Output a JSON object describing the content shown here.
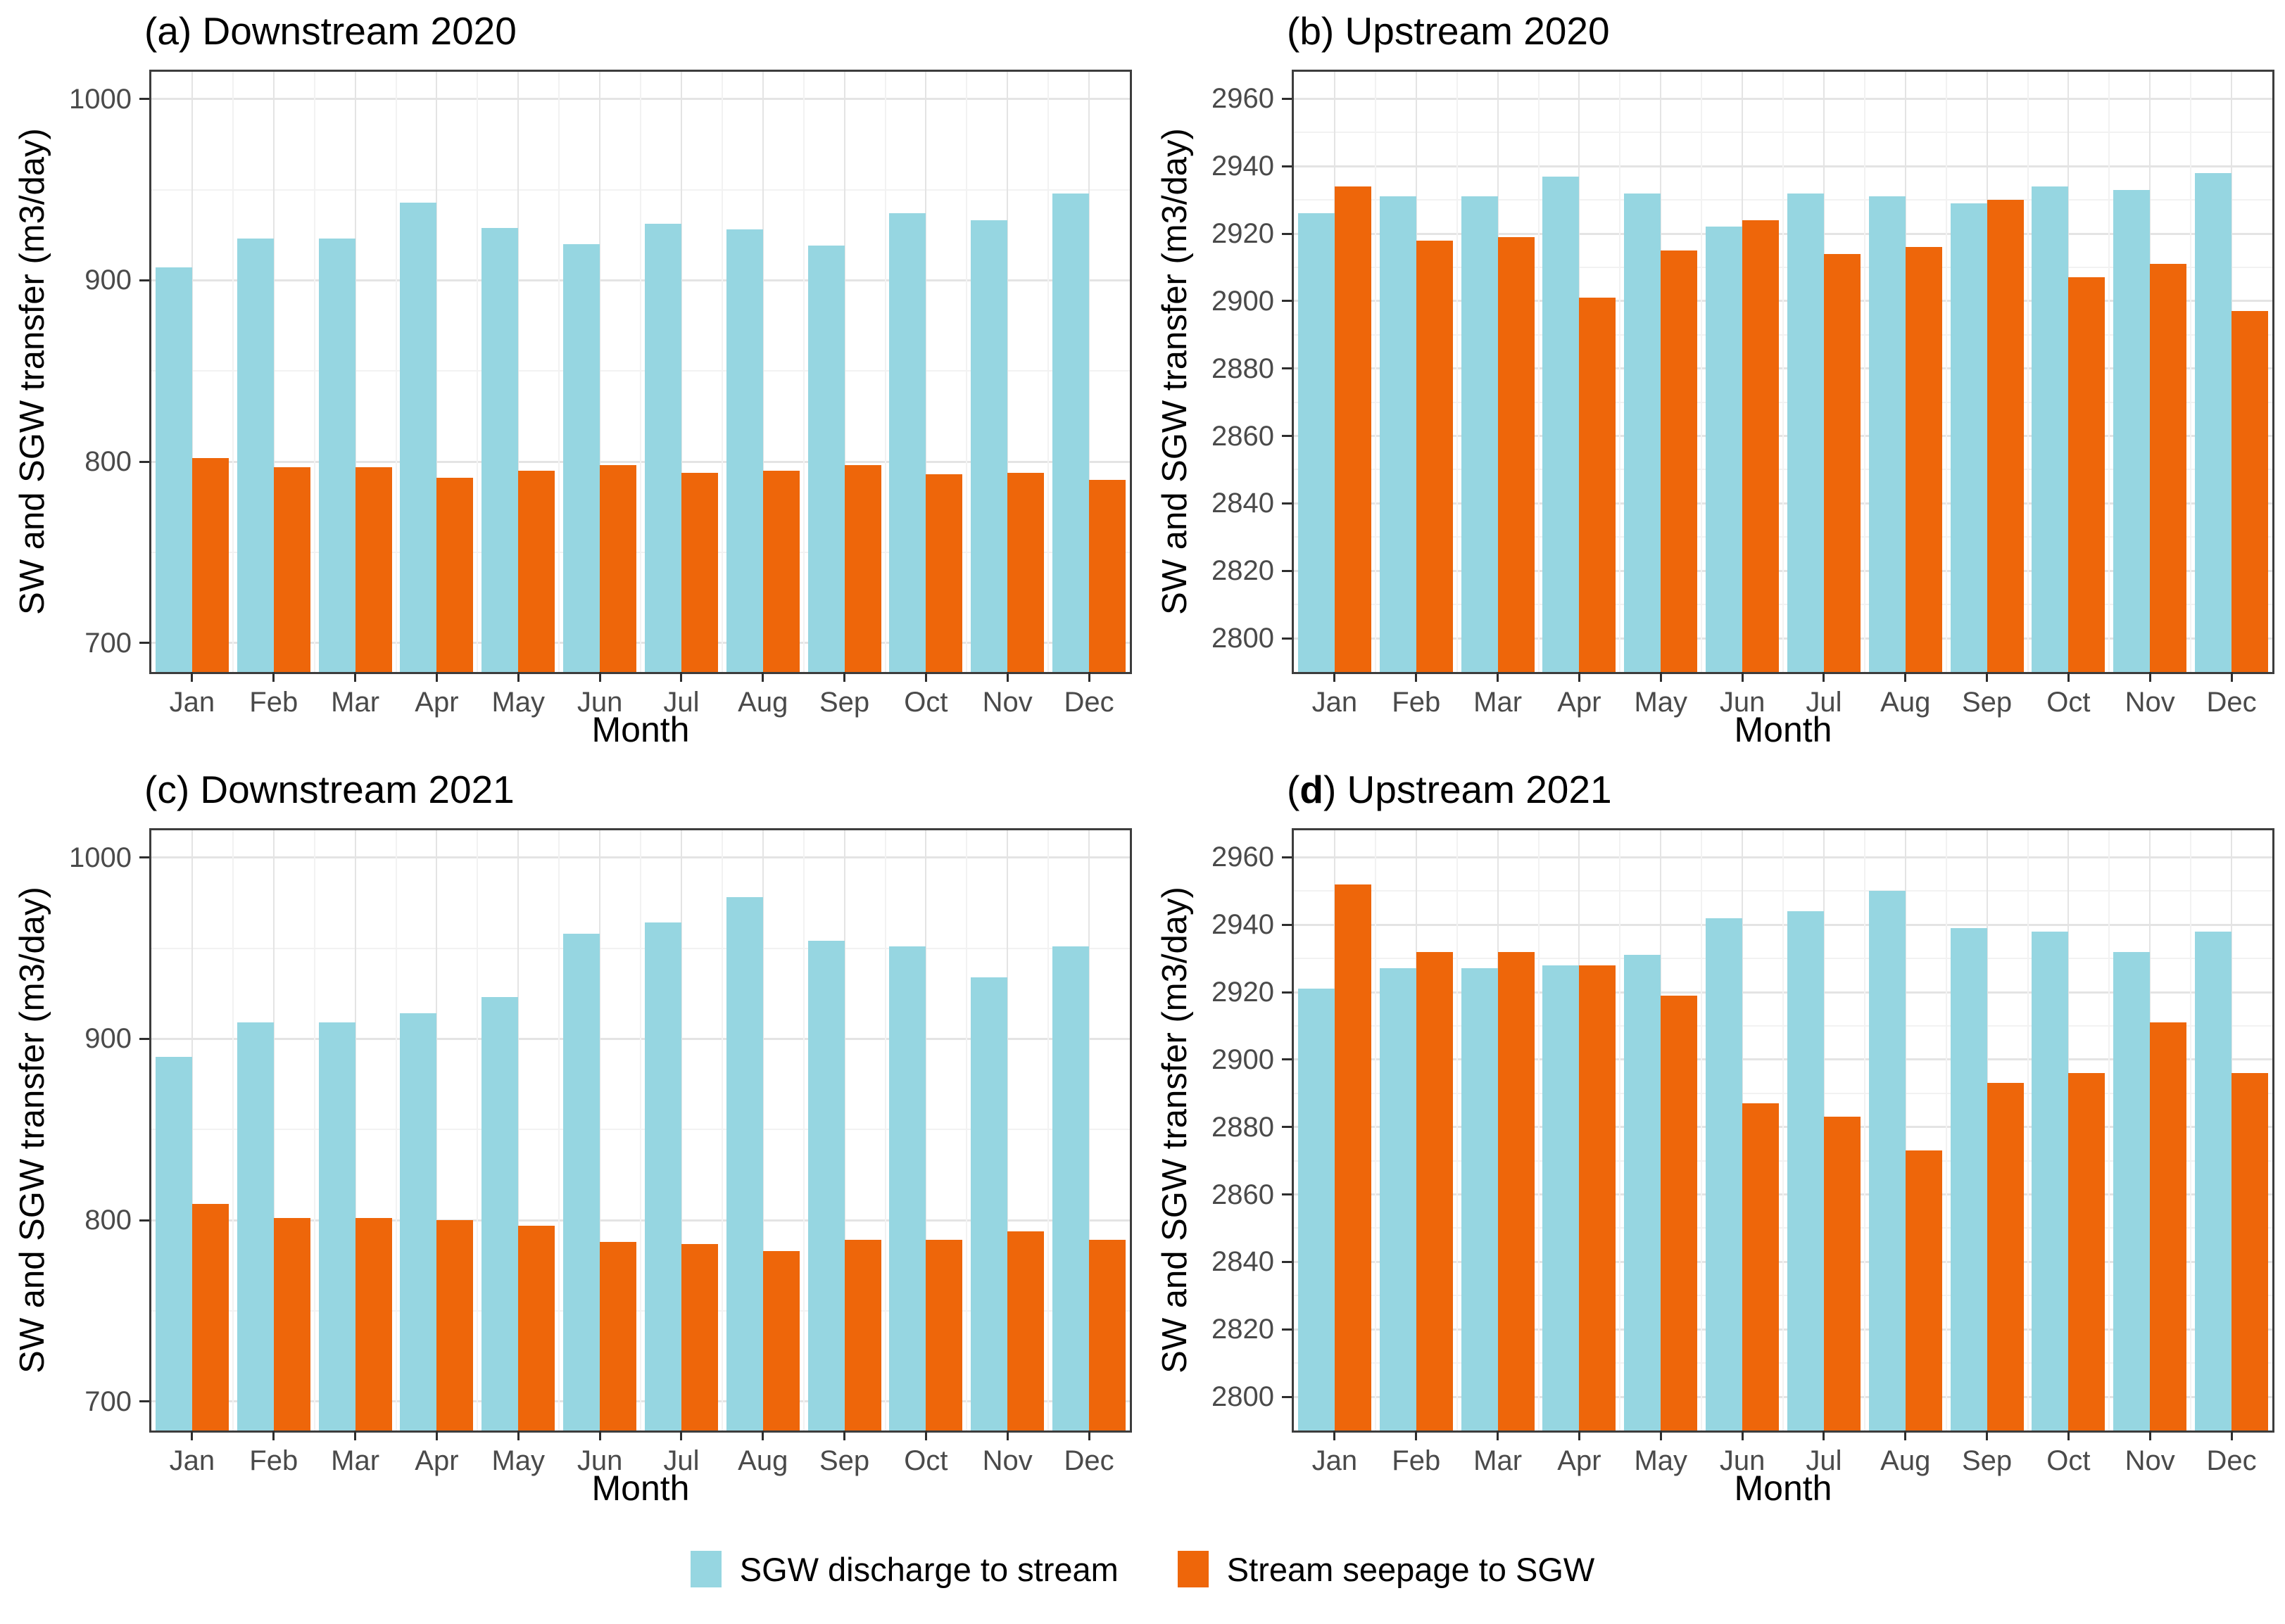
{
  "figure": {
    "x_axis_label": "Month",
    "y_axis_label": "SW and SGW transfer (m3/day)",
    "legend": [
      {
        "label": "SGW discharge to stream",
        "color": "#96D6E1"
      },
      {
        "label": "Stream seepage to SGW",
        "color": "#EE660A"
      }
    ],
    "colors": {
      "bar_blue": "#96D6E1",
      "bar_orange": "#EE660A",
      "grid_major": "#E4E4E4",
      "grid_minor": "#F2F2F2",
      "panel_border": "#3d3d3d",
      "tick_label": "#4a4a4a",
      "title": "#000000"
    }
  },
  "chart_data": [
    {
      "type": "bar",
      "title": "(a) Downstream 2020",
      "title_letter": "a",
      "title_rest": "Downstream 2020",
      "title_letter_bold": false,
      "categories": [
        "Jan",
        "Feb",
        "Mar",
        "Apr",
        "May",
        "Jun",
        "Jul",
        "Aug",
        "Sep",
        "Oct",
        "Nov",
        "Dec"
      ],
      "series": [
        {
          "name": "SGW discharge to stream",
          "color": "#96D6E1",
          "values": [
            907,
            923,
            923,
            943,
            929,
            920,
            931,
            928,
            919,
            937,
            933,
            948
          ]
        },
        {
          "name": "Stream seepage to SGW",
          "color": "#EE660A",
          "values": [
            802,
            797,
            797,
            791,
            795,
            798,
            794,
            795,
            798,
            793,
            794,
            790
          ]
        }
      ],
      "xlabel": "Month",
      "ylabel": "SW and SGW transfer (m3/day)",
      "ylim": [
        684,
        1015
      ],
      "yticks": [
        700,
        800,
        900,
        1000
      ],
      "yticks_minor": [
        750,
        850,
        950
      ],
      "grid": true,
      "legend_position": "bottom"
    },
    {
      "type": "bar",
      "title": "(b) Upstream 2020",
      "title_letter": "b",
      "title_rest": "Upstream 2020",
      "title_letter_bold": false,
      "categories": [
        "Jan",
        "Feb",
        "Mar",
        "Apr",
        "May",
        "Jun",
        "Jul",
        "Aug",
        "Sep",
        "Oct",
        "Nov",
        "Dec"
      ],
      "series": [
        {
          "name": "SGW discharge to stream",
          "color": "#96D6E1",
          "values": [
            2926,
            2931,
            2931,
            2937,
            2932,
            2922,
            2932,
            2931,
            2929,
            2934,
            2933,
            2938
          ]
        },
        {
          "name": "Stream seepage to SGW",
          "color": "#EE660A",
          "values": [
            2934,
            2918,
            2919,
            2901,
            2915,
            2924,
            2914,
            2916,
            2930,
            2907,
            2911,
            2897
          ]
        }
      ],
      "xlabel": "Month",
      "ylabel": "SW and SGW transfer (m3/day)",
      "ylim": [
        2790,
        2968
      ],
      "yticks": [
        2800,
        2820,
        2840,
        2860,
        2880,
        2900,
        2920,
        2940,
        2960
      ],
      "yticks_minor": [
        2810,
        2830,
        2850,
        2870,
        2890,
        2910,
        2930,
        2950
      ],
      "grid": true,
      "legend_position": "bottom"
    },
    {
      "type": "bar",
      "title": "(c) Downstream 2021",
      "title_letter": "c",
      "title_rest": "Downstream 2021",
      "title_letter_bold": false,
      "categories": [
        "Jan",
        "Feb",
        "Mar",
        "Apr",
        "May",
        "Jun",
        "Jul",
        "Aug",
        "Sep",
        "Oct",
        "Nov",
        "Dec"
      ],
      "series": [
        {
          "name": "SGW discharge to stream",
          "color": "#96D6E1",
          "values": [
            890,
            909,
            909,
            914,
            923,
            958,
            964,
            978,
            954,
            951,
            934,
            951
          ]
        },
        {
          "name": "Stream seepage to SGW",
          "color": "#EE660A",
          "values": [
            809,
            801,
            801,
            800,
            797,
            788,
            787,
            783,
            789,
            789,
            794,
            789
          ]
        }
      ],
      "xlabel": "Month",
      "ylabel": "SW and SGW transfer (m3/day)",
      "ylim": [
        684,
        1015
      ],
      "yticks": [
        700,
        800,
        900,
        1000
      ],
      "yticks_minor": [
        750,
        850,
        950
      ],
      "grid": true,
      "legend_position": "bottom"
    },
    {
      "type": "bar",
      "title": "(d) Upstream 2021",
      "title_letter": "d",
      "title_rest": "Upstream 2021",
      "title_letter_bold": true,
      "categories": [
        "Jan",
        "Feb",
        "Mar",
        "Apr",
        "May",
        "Jun",
        "Jul",
        "Aug",
        "Sep",
        "Oct",
        "Nov",
        "Dec"
      ],
      "series": [
        {
          "name": "SGW discharge to stream",
          "color": "#96D6E1",
          "values": [
            2921,
            2927,
            2927,
            2928,
            2931,
            2942,
            2944,
            2950,
            2939,
            2938,
            2932,
            2938
          ]
        },
        {
          "name": "Stream seepage to SGW",
          "color": "#EE660A",
          "values": [
            2952,
            2932,
            2932,
            2928,
            2919,
            2887,
            2883,
            2873,
            2893,
            2896,
            2911,
            2896
          ]
        }
      ],
      "xlabel": "Month",
      "ylabel": "SW and SGW transfer (m3/day)",
      "ylim": [
        2790,
        2968
      ],
      "yticks": [
        2800,
        2820,
        2840,
        2860,
        2880,
        2900,
        2920,
        2940,
        2960
      ],
      "yticks_minor": [
        2810,
        2830,
        2850,
        2870,
        2890,
        2910,
        2930,
        2950
      ],
      "grid": true,
      "legend_position": "bottom"
    }
  ]
}
